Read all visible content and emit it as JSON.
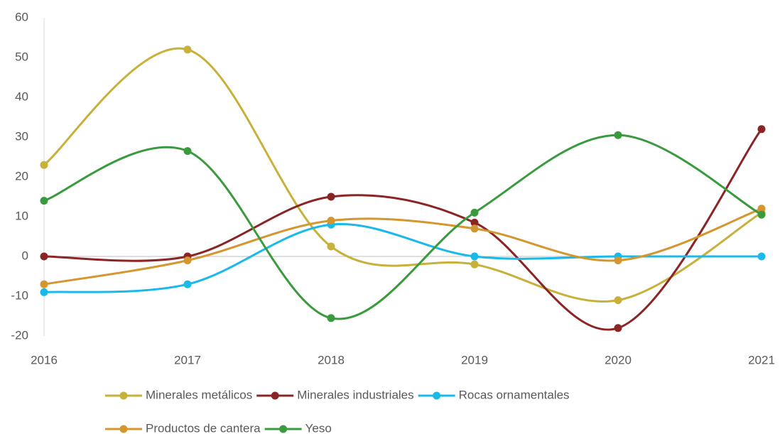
{
  "chart_data": {
    "type": "line",
    "smooth": true,
    "legend": "bottom",
    "x": [
      2016,
      2017,
      2018,
      2019,
      2020,
      2021
    ],
    "xlim": [
      2016,
      2021
    ],
    "xticks": [
      2016,
      2017,
      2018,
      2019,
      2020,
      2021
    ],
    "ylim": [
      -20,
      60
    ],
    "yticks": [
      -20,
      -10,
      0,
      10,
      20,
      30,
      40,
      50,
      60
    ],
    "series": [
      {
        "name": "Minerales metálicos",
        "color": "#c8b13a",
        "values": [
          23,
          52,
          2.5,
          -2,
          -11,
          11
        ]
      },
      {
        "name": "Minerales industriales",
        "color": "#8b2525",
        "values": [
          0,
          0,
          15,
          8.5,
          -18,
          32
        ]
      },
      {
        "name": "Rocas ornamentales",
        "color": "#19b9ea",
        "values": [
          -9,
          -7,
          8,
          0,
          0,
          0
        ]
      },
      {
        "name": "Productos de cantera",
        "color": "#d4962f",
        "values": [
          -7,
          -1,
          9,
          7,
          -1,
          12
        ]
      },
      {
        "name": "Yeso",
        "color": "#3a9a3e",
        "values": [
          14,
          26.5,
          -15.5,
          11,
          30.5,
          10.5
        ]
      }
    ]
  }
}
